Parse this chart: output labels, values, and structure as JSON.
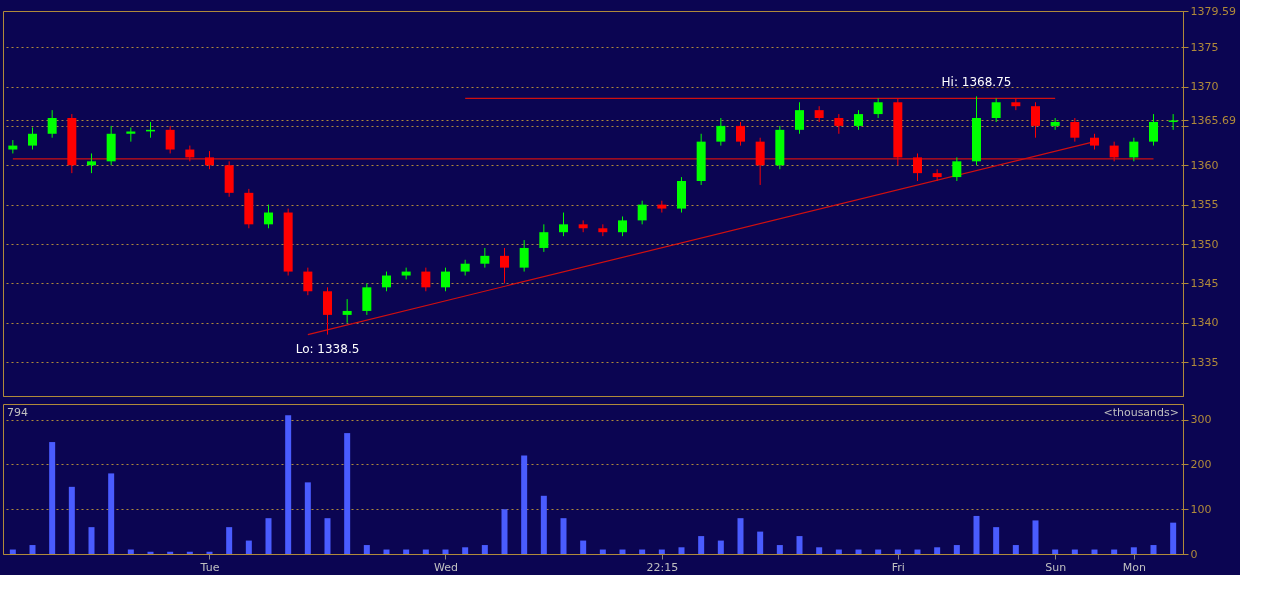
{
  "chart_data": [
    {
      "type": "candlestick",
      "categories": [
        null,
        null,
        null,
        null,
        null,
        null,
        null,
        null,
        null,
        null,
        null,
        null,
        null,
        null,
        null,
        null,
        null,
        null,
        null,
        null,
        null,
        null,
        null,
        null,
        null,
        null,
        null,
        null,
        null,
        null,
        null,
        null,
        null,
        null,
        null,
        null,
        null,
        null,
        null,
        null,
        null,
        null,
        null,
        null,
        null,
        null,
        null,
        null,
        null,
        null,
        null,
        null,
        null,
        null,
        null,
        null,
        null,
        null,
        null,
        null
      ],
      "ohlc": [
        [
          1362,
          1363.2,
          1361.5,
          1362.5
        ],
        [
          1362.5,
          1364.8,
          1362,
          1364
        ],
        [
          1364,
          1367,
          1363.5,
          1366
        ],
        [
          1366,
          1366.5,
          1359,
          1360
        ],
        [
          1360,
          1361.5,
          1359,
          1360.5
        ],
        [
          1360.5,
          1365,
          1360,
          1364
        ],
        [
          1364,
          1364.8,
          1363,
          1364.3
        ],
        [
          1364.3,
          1365.5,
          1363.5,
          1364.5
        ],
        [
          1364.5,
          1365,
          1361.5,
          1362
        ],
        [
          1362,
          1362.5,
          1360.5,
          1361
        ],
        [
          1361,
          1361.8,
          1359.5,
          1360
        ],
        [
          1360,
          1360.5,
          1356,
          1356.5
        ],
        [
          1356.5,
          1357,
          1352,
          1352.5
        ],
        [
          1352.5,
          1355,
          1352,
          1354
        ],
        [
          1354,
          1354.5,
          1346,
          1346.5
        ],
        [
          1346.5,
          1347,
          1343.5,
          1344
        ],
        [
          1344,
          1344.5,
          1338.5,
          1341
        ],
        [
          1341,
          1343,
          1340,
          1341.5
        ],
        [
          1341.5,
          1345,
          1341,
          1344.5
        ],
        [
          1344.5,
          1346.5,
          1344,
          1346
        ],
        [
          1346,
          1347,
          1345.5,
          1346.5
        ],
        [
          1346.5,
          1347,
          1344,
          1344.5
        ],
        [
          1344.5,
          1347,
          1344,
          1346.5
        ],
        [
          1346.5,
          1348,
          1346,
          1347.5
        ],
        [
          1347.5,
          1349.5,
          1347,
          1348.5
        ],
        [
          1348.5,
          1349.5,
          1345,
          1347
        ],
        [
          1347,
          1350.5,
          1346.5,
          1349.5
        ],
        [
          1349.5,
          1352.5,
          1349,
          1351.5
        ],
        [
          1351.5,
          1354,
          1351,
          1352.5
        ],
        [
          1352.5,
          1353,
          1351.5,
          1352
        ],
        [
          1352,
          1352.5,
          1351,
          1351.5
        ],
        [
          1351.5,
          1353.5,
          1351,
          1353
        ],
        [
          1353,
          1355.5,
          1352.5,
          1355
        ],
        [
          1355,
          1355.5,
          1354,
          1354.5
        ],
        [
          1354.5,
          1358.5,
          1354,
          1358
        ],
        [
          1358,
          1364,
          1357.5,
          1363
        ],
        [
          1363,
          1366,
          1362.5,
          1365
        ],
        [
          1365,
          1365.5,
          1362.5,
          1363
        ],
        [
          1363,
          1363.5,
          1357.5,
          1360
        ],
        [
          1360,
          1365,
          1359.5,
          1364.5
        ],
        [
          1364.5,
          1368,
          1364,
          1367
        ],
        [
          1367,
          1367.5,
          1365.5,
          1366
        ],
        [
          1366,
          1366.5,
          1364,
          1365
        ],
        [
          1365,
          1367,
          1364.5,
          1366.5
        ],
        [
          1366.5,
          1368.5,
          1366,
          1368
        ],
        [
          1368,
          1368.5,
          1360,
          1361
        ],
        [
          1361,
          1361.5,
          1358,
          1359
        ],
        [
          1359,
          1359.5,
          1358,
          1358.5
        ],
        [
          1358.5,
          1361,
          1358,
          1360.5
        ],
        [
          1360.5,
          1368.75,
          1360,
          1366
        ],
        [
          1366,
          1368.5,
          1365.5,
          1368
        ],
        [
          1368,
          1368.5,
          1367,
          1367.5
        ],
        [
          1367.5,
          1368,
          1363.5,
          1365
        ],
        [
          1365,
          1366,
          1364.5,
          1365.5
        ],
        [
          1365.5,
          1366,
          1363,
          1363.5
        ],
        [
          1363.5,
          1364,
          1362,
          1362.5
        ],
        [
          1362.5,
          1363,
          1360.5,
          1361
        ],
        [
          1361,
          1363.5,
          1360.5,
          1363
        ],
        [
          1363,
          1366.5,
          1362.5,
          1365.5
        ],
        [
          1365.5,
          1366.5,
          1364.5,
          1365.69
        ]
      ],
      "colors": [
        "#00ff00",
        "#00ff00",
        "#00ff00",
        "#ff0000",
        "#00ff00",
        "#00ff00",
        "#00ff00",
        "#00ff00",
        "#ff0000",
        "#ff0000",
        "#ff0000",
        "#ff0000",
        "#ff0000",
        "#00ff00",
        "#ff0000",
        "#ff0000",
        "#ff0000",
        "#00ff00",
        "#00ff00",
        "#00ff00",
        "#00ff00",
        "#ff0000",
        "#00ff00",
        "#00ff00",
        "#00ff00",
        "#ff0000",
        "#00ff00",
        "#00ff00",
        "#00ff00",
        "#ff0000",
        "#ff0000",
        "#00ff00",
        "#00ff00",
        "#ff0000",
        "#00ff00",
        "#00ff00",
        "#00ff00",
        "#ff0000",
        "#ff0000",
        "#00ff00",
        "#00ff00",
        "#ff0000",
        "#ff0000",
        "#00ff00",
        "#00ff00",
        "#ff0000",
        "#ff0000",
        "#ff0000",
        "#00ff00",
        "#00ff00",
        "#00ff00",
        "#ff0000",
        "#ff0000",
        "#00ff00",
        "#ff0000",
        "#ff0000",
        "#ff0000",
        "#00ff00",
        "#00ff00",
        "#00ff00"
      ],
      "series": [
        {
          "type": "line",
          "color": "#d01010",
          "values": [
            1360.8,
            null,
            null,
            null,
            null,
            null,
            null,
            null,
            null,
            null,
            null,
            null,
            null,
            null,
            null,
            null,
            null,
            null,
            null,
            null,
            null,
            null,
            null,
            null,
            null,
            null,
            null,
            null,
            null,
            null,
            null,
            null,
            null,
            null,
            null,
            null,
            null,
            null,
            null,
            null,
            null,
            null,
            null,
            null,
            null,
            null,
            null,
            null,
            null,
            null,
            null,
            null,
            null,
            null,
            null,
            null,
            null,
            null,
            1360.8,
            null
          ]
        },
        {
          "type": "line",
          "color": "#d01010",
          "values": [
            null,
            null,
            null,
            null,
            null,
            null,
            null,
            null,
            null,
            null,
            null,
            null,
            null,
            null,
            null,
            null,
            null,
            null,
            null,
            null,
            null,
            null,
            null,
            1368.5,
            null,
            null,
            null,
            null,
            null,
            null,
            null,
            null,
            null,
            null,
            null,
            null,
            null,
            null,
            null,
            null,
            null,
            null,
            null,
            null,
            null,
            null,
            null,
            null,
            null,
            null,
            null,
            null,
            null,
            1368.5,
            null,
            null,
            null,
            null,
            null,
            null
          ]
        },
        {
          "type": "line",
          "color": "#d01010",
          "values": [
            null,
            null,
            null,
            null,
            null,
            null,
            null,
            null,
            null,
            null,
            null,
            null,
            null,
            null,
            null,
            1338.5,
            null,
            null,
            null,
            null,
            null,
            null,
            null,
            null,
            null,
            null,
            null,
            null,
            null,
            null,
            null,
            null,
            null,
            null,
            null,
            null,
            null,
            null,
            null,
            null,
            null,
            null,
            null,
            null,
            null,
            null,
            null,
            null,
            null,
            null,
            null,
            null,
            null,
            null,
            null,
            1363,
            null,
            null,
            null,
            null
          ]
        }
      ],
      "ylim": [
        1330.7,
        1379.59
      ],
      "yticks": [
        1335,
        1340,
        1345,
        1350,
        1355,
        1360,
        {
          "value": 1365,
          "label": null
        },
        1370,
        1375,
        1379.59,
        1365.69
      ],
      "annotations": [
        {
          "text": "Lo: 1338.5",
          "y": 1338.5
        },
        {
          "text": "Hi: 1368.75",
          "y": 1368.75
        }
      ],
      "grid": "y",
      "tick_labels": "y"
    },
    {
      "type": "bar",
      "categories": [
        null,
        null,
        null,
        null,
        null,
        null,
        null,
        null,
        null,
        null,
        "Tue",
        null,
        null,
        null,
        null,
        null,
        null,
        null,
        null,
        null,
        null,
        null,
        "Wed",
        null,
        null,
        null,
        null,
        null,
        null,
        null,
        null,
        null,
        null,
        "22:15",
        null,
        null,
        null,
        null,
        null,
        null,
        null,
        null,
        null,
        null,
        null,
        "Fri",
        null,
        null,
        null,
        null,
        null,
        null,
        null,
        "Sun",
        null,
        null,
        null,
        "Mon",
        null,
        null
      ],
      "values": [
        10,
        20,
        250,
        150,
        60,
        180,
        10,
        5,
        5,
        5,
        5,
        60,
        30,
        80,
        310,
        160,
        80,
        270,
        20,
        10,
        10,
        10,
        10,
        15,
        20,
        100,
        220,
        130,
        80,
        30,
        10,
        10,
        10,
        10,
        15,
        40,
        30,
        80,
        50,
        20,
        40,
        15,
        10,
        10,
        10,
        10,
        10,
        15,
        20,
        85,
        60,
        20,
        75,
        10,
        10,
        10,
        10,
        15,
        20,
        70
      ],
      "color": "#4a5cff",
      "ylim": [
        0,
        335
      ],
      "yticks": [
        0,
        100,
        200,
        300
      ],
      "annotations": [
        "794",
        "<thousands>"
      ],
      "grid": "y"
    }
  ]
}
